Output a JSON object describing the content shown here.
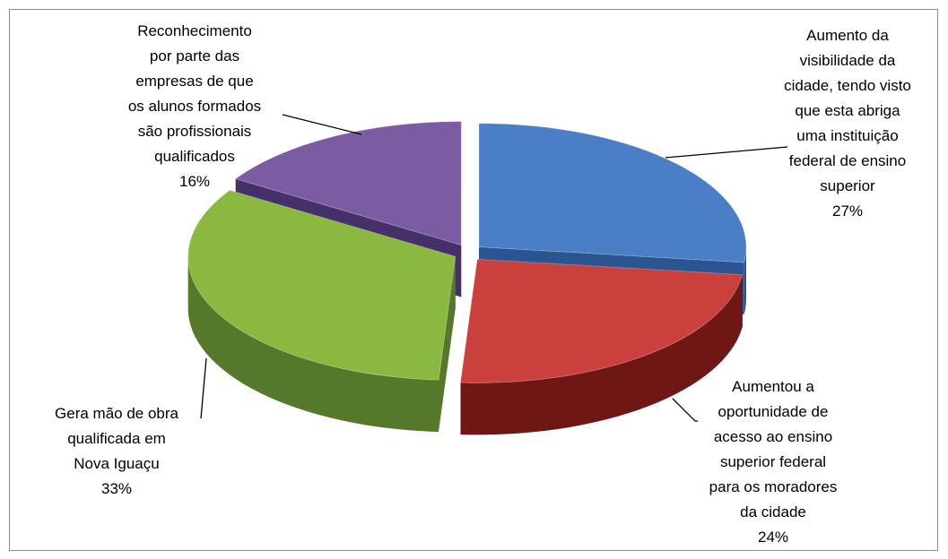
{
  "chart_data": {
    "type": "pie",
    "categories": [
      "Aumento da\nvisibilidade da\ncidade, tendo visto\nque esta abriga\numa instituição\nfederal de ensino\nsuperior",
      "Aumentou a\noportunidade de\nacesso ao ensino\nsuperior federal\npara os moradores\nda cidade",
      "Gera mão de obra\nqualificada em\nNova Iguaçu",
      "Reconhecimento\npor parte das\nempresas de que\nos alunos formados\nsão profissionais\nqualificados"
    ],
    "values": [
      27,
      24,
      33,
      16
    ],
    "value_labels": [
      "27%",
      "24%",
      "33%",
      "16%"
    ],
    "colors": [
      "#4a7fc8",
      "#c9403c",
      "#8bb840",
      "#7b5ca3"
    ],
    "side_colors": [
      "#2b5590",
      "#6e1715",
      "#55782a",
      "#45306a"
    ]
  }
}
